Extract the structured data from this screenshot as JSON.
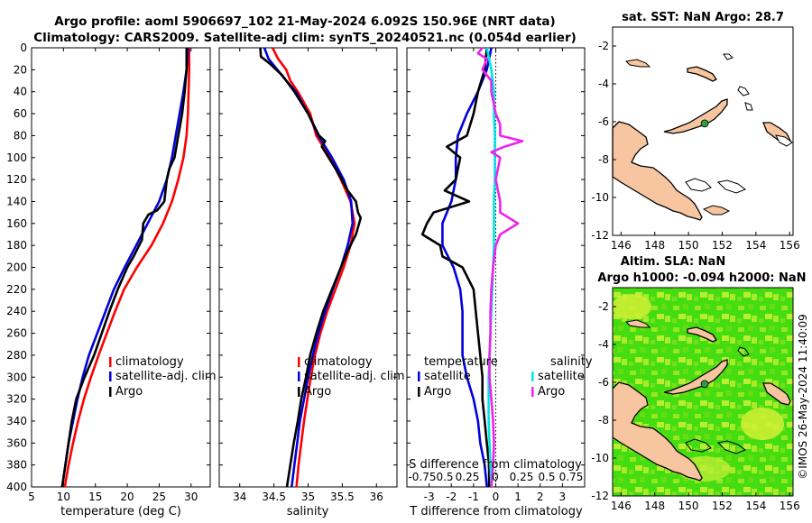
{
  "header": {
    "line1": "Argo profile: aoml 5906697_102 21-May-2024 6.092S 150.96E (NRT data)",
    "line2": "Climatology: CARS2009. Satellite-adj clim: synTS_20240521.nc (0.054d earlier)"
  },
  "depth_axis": {
    "ylim": [
      0,
      400
    ],
    "ticks": [
      0,
      20,
      40,
      60,
      80,
      100,
      120,
      140,
      160,
      180,
      200,
      220,
      240,
      260,
      280,
      300,
      320,
      340,
      360,
      380,
      400
    ],
    "tick_labels": [
      "0",
      "20",
      "40",
      "60",
      "80",
      "100",
      "120",
      "140",
      "160",
      "180",
      "200",
      "220",
      "240",
      "260",
      "280",
      "300",
      "320",
      "340",
      "360",
      "380",
      "400"
    ]
  },
  "colors": {
    "climatology": "#ff0000",
    "satellite": "#0000dd",
    "argo": "#000000",
    "salinity_satellite": "#00e5e5",
    "salinity_argo": "#ee22ee",
    "land": "#f7c59f",
    "island_dot": "#2e9e3e",
    "sla_green": "#33dd11",
    "sla_yellow": "#ccee33"
  },
  "chart_data": [
    {
      "id": "temperature",
      "type": "line",
      "xlabel": "temperature (deg C)",
      "xlim": [
        5,
        33
      ],
      "xticks": [
        5,
        10,
        15,
        20,
        25,
        30
      ],
      "xtick_labels": [
        "5",
        "10",
        "15",
        "20",
        "25",
        "30"
      ],
      "legend": [
        "climatology",
        "satellite-adj. clim",
        "Argo"
      ],
      "series": [
        {
          "name": "climatology",
          "color": "#ff0000",
          "depth": [
            0,
            20,
            40,
            60,
            80,
            100,
            120,
            140,
            160,
            180,
            200,
            220,
            240,
            260,
            280,
            300,
            320,
            340,
            360,
            380,
            400
          ],
          "values": [
            29.7,
            29.7,
            29.6,
            29.5,
            29.3,
            28.8,
            28.0,
            27.0,
            25.6,
            23.8,
            21.5,
            19.5,
            18.1,
            16.8,
            15.5,
            14.3,
            13.2,
            12.3,
            11.5,
            10.8,
            10.2
          ]
        },
        {
          "name": "satellite-adj. clim",
          "color": "#0000dd",
          "depth": [
            0,
            20,
            40,
            60,
            80,
            100,
            120,
            140,
            160,
            180,
            200,
            220,
            240,
            260,
            280,
            300,
            320,
            340,
            360,
            380,
            400
          ],
          "values": [
            29.5,
            29.3,
            28.8,
            28.2,
            27.6,
            27.0,
            26.2,
            25.0,
            23.2,
            21.4,
            19.6,
            17.9,
            16.6,
            15.3,
            14.0,
            13.0,
            12.2,
            11.5,
            10.8,
            10.3,
            9.8
          ]
        },
        {
          "name": "Argo",
          "color": "#000000",
          "depth": [
            0,
            20,
            40,
            60,
            80,
            100,
            110,
            120,
            140,
            148,
            152,
            160,
            175,
            190,
            200,
            220,
            240,
            260,
            280,
            300,
            320,
            340,
            360,
            380,
            400
          ],
          "values": [
            29.3,
            29.3,
            29.0,
            28.6,
            28.0,
            27.4,
            26.6,
            26.2,
            25.8,
            24.7,
            23.3,
            22.5,
            22.3,
            21.0,
            20.0,
            18.5,
            17.2,
            16.0,
            14.8,
            13.3,
            12.0,
            11.3,
            10.8,
            10.3,
            9.8
          ]
        }
      ]
    },
    {
      "id": "salinity",
      "type": "line",
      "xlabel": "salinity",
      "xlim": [
        33.7,
        36.3
      ],
      "xticks": [
        34,
        34.5,
        35,
        35.5,
        36
      ],
      "xtick_labels": [
        "34",
        "34.5",
        "35",
        "35.5",
        "36"
      ],
      "legend": [
        "climatology",
        "satellite-adj. clim",
        "Argo"
      ],
      "series": [
        {
          "name": "climatology",
          "color": "#ff0000",
          "depth": [
            0,
            10,
            20,
            30,
            40,
            60,
            80,
            100,
            120,
            140,
            160,
            180,
            200,
            220,
            240,
            260,
            280,
            300,
            320,
            340,
            360,
            380,
            400
          ],
          "values": [
            34.48,
            34.56,
            34.68,
            34.74,
            34.85,
            35.03,
            35.12,
            35.32,
            35.48,
            35.62,
            35.68,
            35.62,
            35.52,
            35.4,
            35.28,
            35.18,
            35.1,
            35.04,
            34.99,
            34.94,
            34.9,
            34.86,
            34.83
          ]
        },
        {
          "name": "satellite-adj. clim",
          "color": "#0000dd",
          "depth": [
            0,
            10,
            20,
            30,
            40,
            60,
            80,
            100,
            120,
            140,
            160,
            180,
            200,
            220,
            240,
            260,
            280,
            300,
            320,
            340,
            360,
            380,
            400
          ],
          "values": [
            34.36,
            34.42,
            34.55,
            34.68,
            34.82,
            35.0,
            35.15,
            35.35,
            35.52,
            35.63,
            35.65,
            35.58,
            35.48,
            35.36,
            35.25,
            35.15,
            35.07,
            35.0,
            34.94,
            34.88,
            34.84,
            34.8,
            34.76
          ]
        },
        {
          "name": "Argo",
          "color": "#000000",
          "depth": [
            0,
            8,
            15,
            25,
            40,
            60,
            80,
            85,
            90,
            110,
            130,
            140,
            150,
            155,
            170,
            185,
            200,
            220,
            240,
            260,
            280,
            300,
            320,
            340,
            360,
            380,
            400
          ],
          "values": [
            34.3,
            34.31,
            34.45,
            34.62,
            34.8,
            35.0,
            35.16,
            35.25,
            35.2,
            35.4,
            35.58,
            35.7,
            35.73,
            35.77,
            35.7,
            35.58,
            35.48,
            35.35,
            35.22,
            35.12,
            35.03,
            34.97,
            34.9,
            34.85,
            34.79,
            34.74,
            34.69
          ]
        }
      ]
    },
    {
      "id": "differences",
      "type": "line",
      "xlabel": "T difference from climatology",
      "xlim": [
        -4,
        4
      ],
      "xticks": [
        -3,
        -2,
        -1,
        0,
        1,
        2,
        3
      ],
      "xtick_labels": [
        "-3",
        "-2",
        "-1",
        "0",
        "1",
        "2",
        "3"
      ],
      "top_xlabel": "S difference from climatology",
      "top_xtick_labels": [
        "-0.75",
        "0.5",
        "0.25",
        "0",
        "0.25",
        "0.5",
        "0.75"
      ],
      "legend_temperature": {
        "title": "temperature",
        "entries": [
          "satellite",
          "Argo"
        ]
      },
      "legend_salinity": {
        "title": "salinity",
        "entries": [
          "satellite",
          "Argo"
        ]
      },
      "series": [
        {
          "name": "T satellite",
          "color": "#0000dd",
          "depth": [
            0,
            20,
            40,
            60,
            80,
            100,
            120,
            140,
            160,
            180,
            200,
            220,
            240,
            260,
            280,
            300,
            320,
            340,
            360,
            380,
            400
          ],
          "values": [
            -0.2,
            -0.4,
            -0.8,
            -1.3,
            -1.7,
            -1.8,
            -1.8,
            -2.0,
            -2.4,
            -2.4,
            -1.9,
            -1.6,
            -1.5,
            -1.5,
            -1.5,
            -1.3,
            -1.0,
            -0.8,
            -0.7,
            -0.5,
            -0.4
          ]
        },
        {
          "name": "T Argo",
          "color": "#000000",
          "depth": [
            0,
            20,
            40,
            60,
            80,
            90,
            100,
            110,
            120,
            130,
            140,
            150,
            160,
            170,
            180,
            190,
            200,
            220,
            240,
            260,
            280,
            300,
            320,
            340,
            360,
            380,
            400
          ],
          "values": [
            -0.4,
            -0.5,
            -0.8,
            -1.0,
            -1.3,
            -2.2,
            -1.6,
            -1.7,
            -1.8,
            -2.3,
            -1.2,
            -2.8,
            -3.1,
            -3.3,
            -2.5,
            -2.4,
            -1.5,
            -1.0,
            -0.9,
            -0.8,
            -0.7,
            -0.6,
            -0.6,
            -0.5,
            -0.4,
            -0.3,
            -0.3
          ]
        },
        {
          "name": "S satellite",
          "color": "#00e5e5",
          "depth": [
            0,
            20,
            40,
            60,
            80,
            100,
            120,
            140,
            160,
            180,
            200,
            220,
            240,
            260,
            280,
            300,
            320,
            340,
            360,
            380,
            400
          ],
          "values": [
            -0.1,
            -0.05,
            -0.02,
            -0.02,
            -0.01,
            -0.01,
            -0.01,
            -0.02,
            -0.02,
            -0.02,
            -0.03,
            -0.04,
            -0.05,
            -0.06,
            -0.07,
            -0.08,
            -0.08,
            -0.08,
            -0.07,
            -0.06,
            -0.05
          ]
        },
        {
          "name": "S Argo",
          "color": "#ee22ee",
          "depth": [
            0,
            5,
            10,
            20,
            30,
            40,
            60,
            70,
            80,
            85,
            90,
            95,
            100,
            120,
            140,
            150,
            160,
            170,
            180,
            200,
            220,
            240,
            260,
            280,
            300,
            320,
            340,
            360,
            380,
            400
          ],
          "values": [
            -0.15,
            -0.2,
            -0.1,
            -0.15,
            -0.05,
            -0.05,
            0.0,
            0.05,
            0.05,
            0.3,
            0.1,
            -0.05,
            0.05,
            0.0,
            0.05,
            0.05,
            0.25,
            0.05,
            0.0,
            -0.03,
            -0.05,
            -0.06,
            -0.06,
            -0.07,
            -0.07,
            -0.05,
            -0.03,
            -0.02,
            -0.03,
            -0.05
          ]
        }
      ]
    },
    {
      "id": "sst_map",
      "type": "map",
      "title": "sat. SST: NaN Argo: 28.7",
      "xlim": [
        145.5,
        156.2
      ],
      "ylim": [
        -12,
        -1
      ],
      "xticks": [
        146,
        148,
        150,
        152,
        154,
        156
      ],
      "xtick_labels": [
        "146",
        "148",
        "150",
        "152",
        "154",
        "156"
      ],
      "yticks": [
        -2,
        -4,
        -6,
        -8,
        -10,
        -12
      ],
      "ytick_labels": [
        "-2",
        "-4",
        "-6",
        "-8",
        "-10",
        "-12"
      ],
      "argo_position": {
        "lon": 150.96,
        "lat": -6.09
      }
    },
    {
      "id": "sla_map",
      "type": "map",
      "title": "Altim. SLA: NaN",
      "subtitle": "Argo h1000: -0.094 h2000: NaN",
      "xlim": [
        145.5,
        156.2
      ],
      "ylim": [
        -12,
        -1
      ],
      "xticks": [
        146,
        148,
        150,
        152,
        154,
        156
      ],
      "xtick_labels": [
        "146",
        "148",
        "150",
        "152",
        "154",
        "156"
      ],
      "yticks": [
        -2,
        -4,
        -6,
        -8,
        -10,
        -12
      ],
      "ytick_labels": [
        "-2",
        "-4",
        "-6",
        "-8",
        "-10",
        "-12"
      ],
      "argo_position": {
        "lon": 150.96,
        "lat": -6.09
      }
    }
  ],
  "watermark": "©IMOS 26-May-2024 11:40:09"
}
